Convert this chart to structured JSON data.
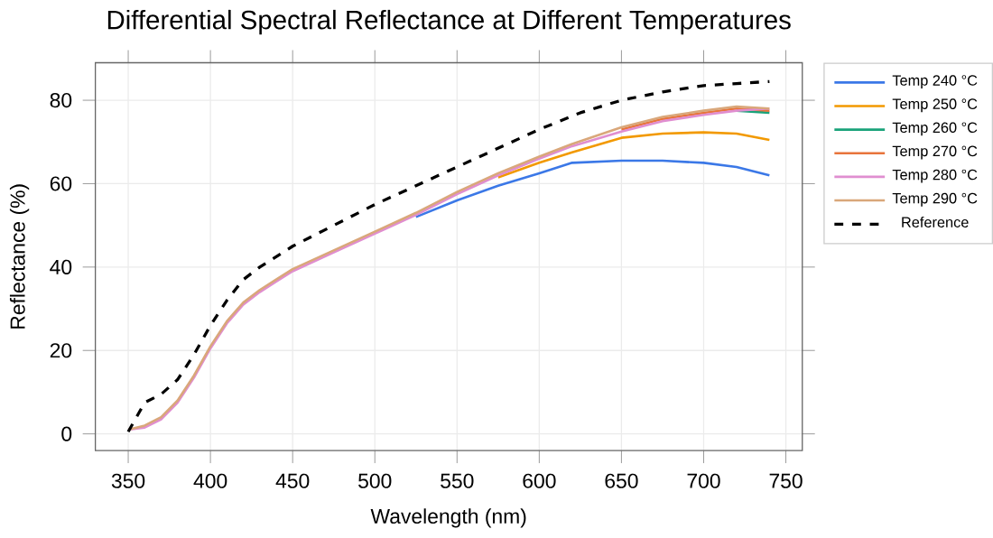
{
  "chart_data": {
    "type": "line",
    "title": "Differential Spectral Reflectance at Different Temperatures",
    "xlabel": "Wavelength (nm)",
    "ylabel": "Reflectance (%)",
    "x": [
      350,
      360,
      370,
      380,
      390,
      400,
      410,
      420,
      430,
      440,
      450,
      475,
      500,
      525,
      550,
      575,
      600,
      620,
      650,
      675,
      700,
      720,
      740
    ],
    "series": [
      {
        "name": "Temp 240 °C",
        "color": "#3b78e7",
        "values": [
          null,
          null,
          null,
          null,
          null,
          null,
          null,
          null,
          null,
          null,
          null,
          null,
          null,
          52,
          56,
          59.5,
          62.5,
          65,
          65.5,
          65.5,
          65,
          64,
          62
        ]
      },
      {
        "name": "Temp 250 °C",
        "color": "#f29900",
        "values": [
          null,
          null,
          null,
          null,
          null,
          null,
          null,
          null,
          null,
          null,
          null,
          null,
          null,
          null,
          null,
          61.5,
          65,
          67.5,
          71,
          72,
          72.3,
          72,
          70.5
        ]
      },
      {
        "name": "Temp 260 °C",
        "color": "#1aa37a",
        "values": [
          null,
          null,
          null,
          null,
          null,
          null,
          null,
          null,
          null,
          null,
          null,
          null,
          null,
          null,
          null,
          null,
          null,
          null,
          null,
          null,
          null,
          77.5,
          77
        ]
      },
      {
        "name": "Temp 270 °C",
        "color": "#e8743b",
        "values": [
          null,
          null,
          null,
          null,
          null,
          null,
          null,
          null,
          null,
          null,
          null,
          null,
          null,
          null,
          null,
          null,
          null,
          null,
          73,
          75.5,
          77,
          78,
          77.5
        ]
      },
      {
        "name": "Temp 280 °C",
        "color": "#e08ed0",
        "values": [
          1,
          1.5,
          3.5,
          7.5,
          13.5,
          20.5,
          26.5,
          31,
          34,
          36.5,
          39,
          43.5,
          48,
          52.5,
          57.5,
          62,
          66,
          69,
          72.5,
          75,
          76.5,
          77.5,
          78
        ]
      },
      {
        "name": "Temp 290 °C",
        "color": "#d9a77a",
        "values": [
          1,
          2,
          4,
          8,
          14,
          21,
          27,
          31.5,
          34.5,
          37,
          39.5,
          44,
          48.5,
          53,
          58,
          62.5,
          66.5,
          69.5,
          73.5,
          76,
          77.5,
          78.5,
          78
        ]
      },
      {
        "name": "Reference",
        "color": "#000000",
        "line_style": "dashed",
        "x": [
          350,
          355,
          360,
          370,
          380,
          390,
          400,
          410,
          420,
          430,
          450,
          475,
          500,
          525,
          550,
          575,
          600,
          625,
          650,
          675,
          700,
          720,
          740
        ],
        "values": [
          0.5,
          4,
          7.5,
          9.5,
          13,
          19,
          26,
          32,
          37,
          40,
          45,
          50,
          55,
          59.5,
          64,
          68.5,
          73,
          77,
          80,
          82,
          83.5,
          84,
          84.5
        ]
      }
    ],
    "xlim": [
      330,
      760
    ],
    "ylim": [
      -4,
      89
    ],
    "xticks": [
      350,
      400,
      450,
      500,
      550,
      600,
      650,
      700,
      750
    ],
    "yticks": [
      0,
      20,
      40,
      60,
      80
    ],
    "grid": true,
    "legend": "top right"
  }
}
